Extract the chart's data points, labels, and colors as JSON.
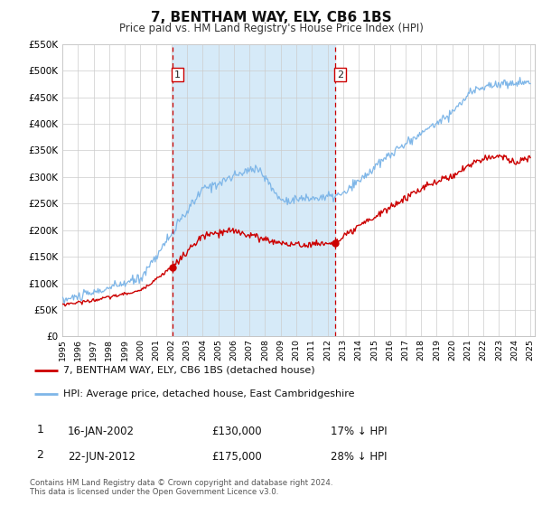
{
  "title": "7, BENTHAM WAY, ELY, CB6 1BS",
  "subtitle": "Price paid vs. HM Land Registry's House Price Index (HPI)",
  "hpi_color": "#7EB6E8",
  "price_color": "#CC0000",
  "marker_color": "#CC0000",
  "bg_color": "#ffffff",
  "plot_bg_color": "#ffffff",
  "grid_color": "#cccccc",
  "span_color": "#D6EAF8",
  "ylim": [
    0,
    550000
  ],
  "yticks": [
    0,
    50000,
    100000,
    150000,
    200000,
    250000,
    300000,
    350000,
    400000,
    450000,
    500000,
    550000
  ],
  "sale1_date": 2002.04,
  "sale1_price": 130000,
  "sale2_date": 2012.47,
  "sale2_price": 175000,
  "legend_line1": "7, BENTHAM WAY, ELY, CB6 1BS (detached house)",
  "legend_line2": "HPI: Average price, detached house, East Cambridgeshire",
  "table_row1": [
    "1",
    "16-JAN-2002",
    "£130,000",
    "17% ↓ HPI"
  ],
  "table_row2": [
    "2",
    "22-JUN-2012",
    "£175,000",
    "28% ↓ HPI"
  ],
  "footnote1": "Contains HM Land Registry data © Crown copyright and database right 2024.",
  "footnote2": "This data is licensed under the Open Government Licence v3.0.",
  "vline_color": "#CC0000",
  "xmin": 1995,
  "xmax": 2025.3
}
